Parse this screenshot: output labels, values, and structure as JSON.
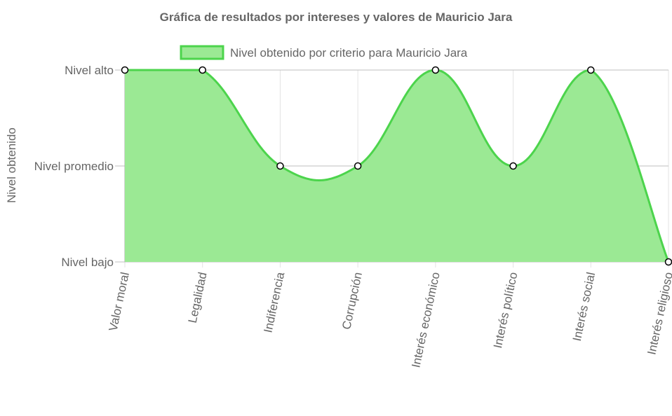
{
  "chart_data": {
    "type": "area",
    "title": "Gráfica de resultados por intereses y valores de Mauricio Jara",
    "ylabel": "Nivel obtenido",
    "xlabel": "",
    "categories": [
      "Valor moral",
      "Legalidad",
      "Indiferencia",
      "Corrupción",
      "Interés económico",
      "Interés político",
      "Interés social",
      "Interés religioso"
    ],
    "y_levels": [
      "Nivel bajo",
      "Nivel promedio",
      "Nivel alto"
    ],
    "ylim": [
      0,
      2
    ],
    "series": [
      {
        "name": "Nivel obtenido por criterio para Mauricio Jara",
        "values": [
          2,
          2,
          1,
          1,
          2,
          1,
          2,
          0
        ],
        "fill_color": "#9be994",
        "line_color": "#4cd44c"
      }
    ],
    "legend_position": "top",
    "grid": true
  }
}
